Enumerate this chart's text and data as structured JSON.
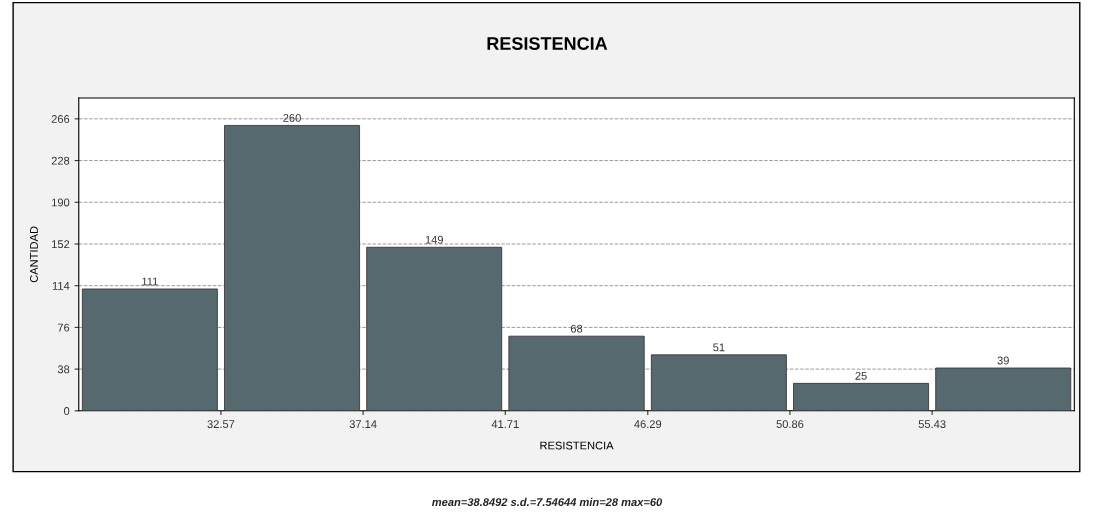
{
  "chart_data": {
    "type": "histogram",
    "title": "RESISTENCIA",
    "xlabel": "RESISTENCIA",
    "ylabel": "CANTIDAD",
    "bins": [
      28,
      32.57,
      37.14,
      41.71,
      46.29,
      50.86,
      55.43,
      60
    ],
    "values": [
      111,
      260,
      149,
      68,
      51,
      25,
      39
    ],
    "color": "#56696e",
    "xlim": [
      28,
      60
    ],
    "xticks": [
      32.57,
      37.14,
      41.71,
      46.29,
      50.86,
      55.43
    ],
    "ylim": [
      0,
      285
    ],
    "yticks": [
      0,
      38,
      76,
      114,
      152,
      190,
      228,
      266
    ],
    "grid": "y",
    "data_labels": true,
    "annotations": [
      "mean=38.8492 s.d.=7.54644 min=28 max=60"
    ]
  }
}
